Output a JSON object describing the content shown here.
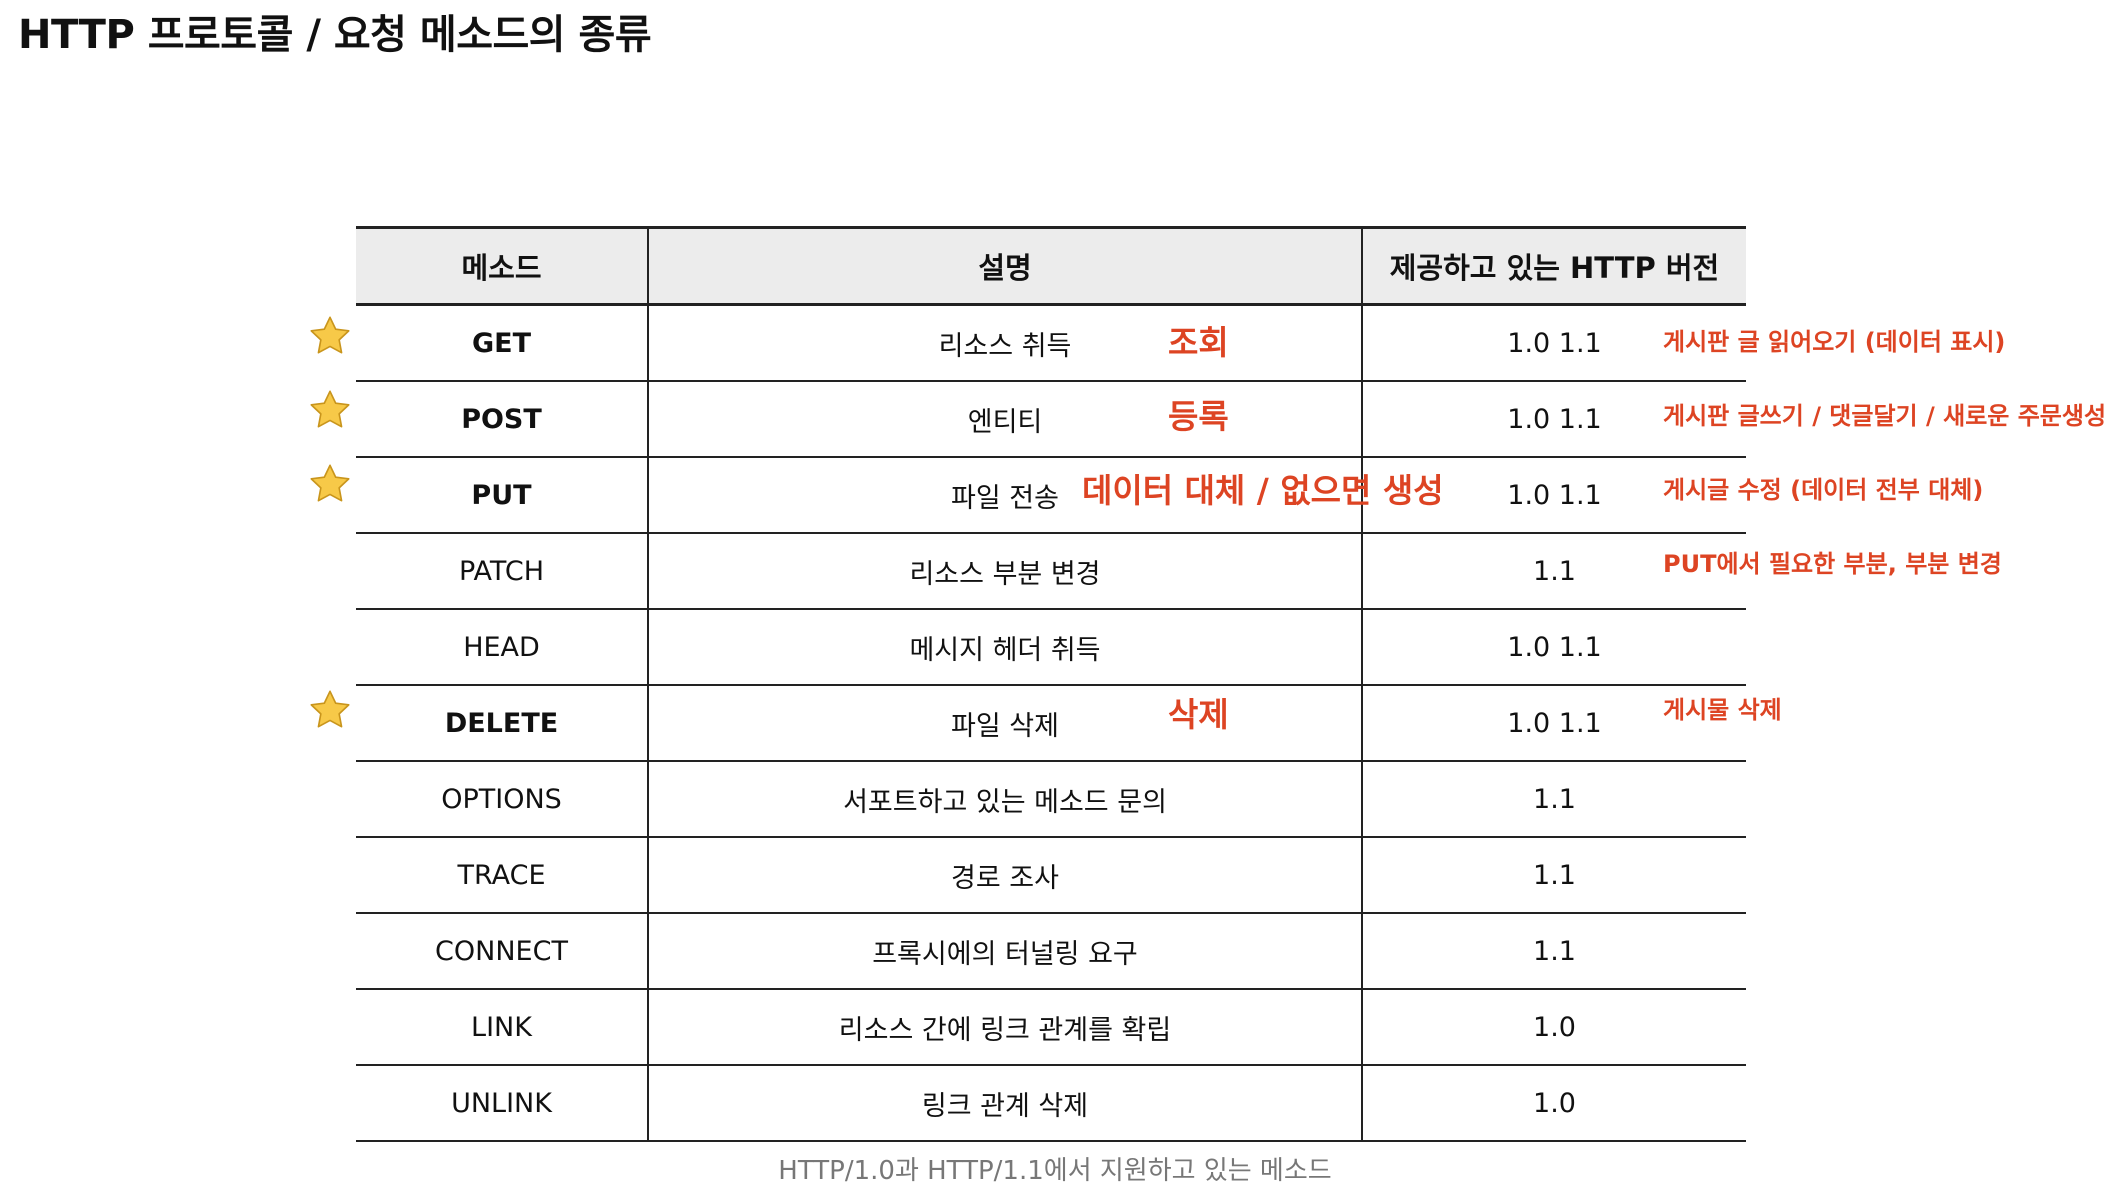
{
  "title": "HTTP 프로토콜 / 요청 메소드의 종류",
  "table": {
    "headers": [
      "메소드",
      "설명",
      "제공하고 있는 HTTP 버전"
    ],
    "rows": [
      {
        "method": "GET",
        "description": "리소스 취득",
        "versions": "1.0  1.1",
        "starred": true
      },
      {
        "method": "POST",
        "description": "엔티티",
        "versions": "1.0  1.1",
        "starred": true
      },
      {
        "method": "PUT",
        "description": "파일 전송",
        "versions": "1.0  1.1",
        "starred": true
      },
      {
        "method": "PATCH",
        "description": "리소스 부분 변경",
        "versions": "1.1",
        "starred": false
      },
      {
        "method": "HEAD",
        "description": "메시지 헤더 취득",
        "versions": "1.0  1.1",
        "starred": false
      },
      {
        "method": "DELETE",
        "description": "파일 삭제",
        "versions": "1.0  1.1",
        "starred": true
      },
      {
        "method": "OPTIONS",
        "description": "서포트하고 있는 메소드 문의",
        "versions": "1.1",
        "starred": false
      },
      {
        "method": "TRACE",
        "description": "경로 조사",
        "versions": "1.1",
        "starred": false
      },
      {
        "method": "CONNECT",
        "description": "프록시에의 터널링 요구",
        "versions": "1.1",
        "starred": false
      },
      {
        "method": "LINK",
        "description": "리소스 간에 링크 관계를 확립",
        "versions": "1.0",
        "starred": false
      },
      {
        "method": "UNLINK",
        "description": "링크 관계 삭제",
        "versions": "1.0",
        "starred": false
      }
    ]
  },
  "annotations": {
    "get_action": "조회",
    "post_action": "등록",
    "put_action": "데이터 대체 / 없으면 생성",
    "delete_action": "삭제",
    "get_note": "게시판 글 읽어오기 (데이터 표시)",
    "post_note": "게시판 글쓰기 / 댓글달기 / 새로운 주문생성",
    "put_note": "게시글 수정 (데이터 전부 대체)",
    "patch_note": "PUT에서 필요한 부분, 부분 변경",
    "delete_note": "게시물 삭제"
  },
  "caption": "HTTP/1.0과 HTTP/1.1에서 지원하고 있는 메소드",
  "colors": {
    "annotation_red": "#dd4423",
    "header_bg": "#ececec",
    "star_fill": "#f7c948"
  },
  "icons": {
    "starred_row": "star-icon"
  }
}
